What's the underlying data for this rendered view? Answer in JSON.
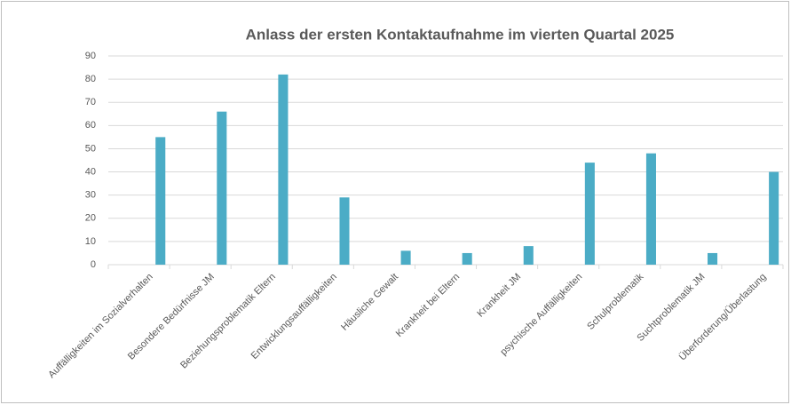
{
  "chart_data": {
    "type": "bar",
    "title": "Anlass der ersten Kontaktaufnahme im vierten Quartal 2025",
    "categories": [
      "Auffälligkeiten im Sozialverhalten",
      "Besondere Bedürfnisse JM",
      "Beziehungsproblematik Eltern",
      "Entwicklungsauffälligkeiten",
      "Häusliche Gewalt",
      "Krankheit bei Eltern",
      "Krankheit JM",
      "psychische Auffälligkeiten",
      "Schulproblematik",
      "Suchtproblematik JM",
      "Überforderung/Überlastung"
    ],
    "values": [
      55,
      66,
      82,
      29,
      6,
      5,
      8,
      44,
      48,
      5,
      40
    ],
    "color": "#4bacc6",
    "ylim": [
      0,
      90
    ],
    "yticks": [
      0,
      10,
      20,
      30,
      40,
      50,
      60,
      70,
      80,
      90
    ],
    "grid": true
  }
}
